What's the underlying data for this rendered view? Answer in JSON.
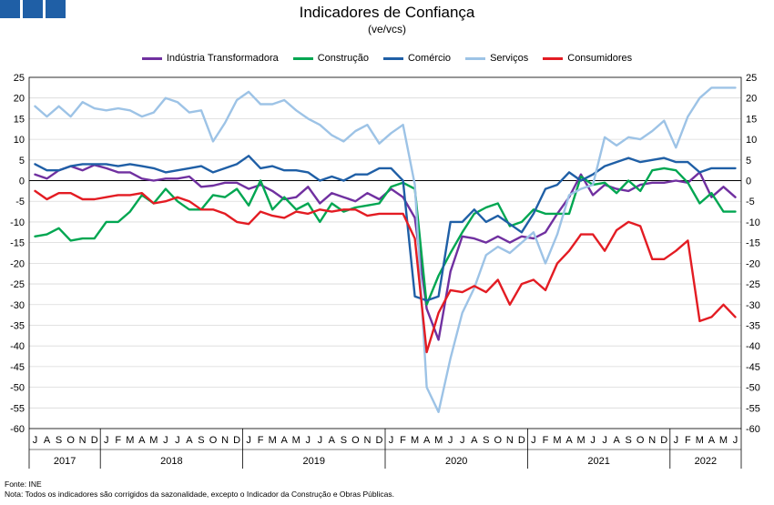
{
  "header": {
    "title": "Indicadores de Confiança",
    "subtitle": "(ve/vcs)"
  },
  "footer": {
    "source": "Fonte: INE",
    "note": "Nota: Todos os indicadores são corrigidos da sazonalidade, excepto o Indicador da Construção e Obras Públicas."
  },
  "chart_data": {
    "type": "line",
    "title": "Indicadores de Confiança",
    "subtitle": "(ve/vcs)",
    "ylim": [
      -60,
      25
    ],
    "yticks": [
      25,
      20,
      15,
      10,
      5,
      0,
      -5,
      -10,
      -15,
      -20,
      -25,
      -30,
      -35,
      -40,
      -45,
      -50,
      -55,
      -60
    ],
    "grid": true,
    "legend_position": "top",
    "months": [
      "J",
      "A",
      "S",
      "O",
      "N",
      "D",
      "J",
      "F",
      "M",
      "A",
      "M",
      "J",
      "J",
      "A",
      "S",
      "O",
      "N",
      "D",
      "J",
      "F",
      "M",
      "A",
      "M",
      "J",
      "J",
      "A",
      "S",
      "O",
      "N",
      "D",
      "J",
      "F",
      "M",
      "A",
      "M",
      "J",
      "J",
      "A",
      "S",
      "O",
      "N",
      "D",
      "J",
      "F",
      "M",
      "A",
      "M",
      "J",
      "J",
      "A",
      "S",
      "O",
      "N",
      "D",
      "J",
      "F",
      "M",
      "A",
      "M",
      "J"
    ],
    "years": [
      {
        "label": "2017",
        "start": 0,
        "count": 6
      },
      {
        "label": "2018",
        "start": 6,
        "count": 12
      },
      {
        "label": "2019",
        "start": 18,
        "count": 12
      },
      {
        "label": "2020",
        "start": 30,
        "count": 12
      },
      {
        "label": "2021",
        "start": 42,
        "count": 12
      },
      {
        "label": "2022",
        "start": 54,
        "count": 6
      }
    ],
    "x": [
      "2017-07",
      "2017-08",
      "2017-09",
      "2017-10",
      "2017-11",
      "2017-12",
      "2018-01",
      "2018-02",
      "2018-03",
      "2018-04",
      "2018-05",
      "2018-06",
      "2018-07",
      "2018-08",
      "2018-09",
      "2018-10",
      "2018-11",
      "2018-12",
      "2019-01",
      "2019-02",
      "2019-03",
      "2019-04",
      "2019-05",
      "2019-06",
      "2019-07",
      "2019-08",
      "2019-09",
      "2019-10",
      "2019-11",
      "2019-12",
      "2020-01",
      "2020-02",
      "2020-03",
      "2020-04",
      "2020-05",
      "2020-06",
      "2020-07",
      "2020-08",
      "2020-09",
      "2020-10",
      "2020-11",
      "2020-12",
      "2021-01",
      "2021-02",
      "2021-03",
      "2021-04",
      "2021-05",
      "2021-06",
      "2021-07",
      "2021-08",
      "2021-09",
      "2021-10",
      "2021-11",
      "2021-12",
      "2022-01",
      "2022-02",
      "2022-03",
      "2022-04",
      "2022-05",
      "2022-06"
    ],
    "series": [
      {
        "name": "Indústria Transformadora",
        "color": "#7030a0",
        "values": [
          1.5,
          0.5,
          2.5,
          3.5,
          2.5,
          3.8,
          3.0,
          2.0,
          2.0,
          0.5,
          0.0,
          0.5,
          0.5,
          1.0,
          -1.5,
          -1.2,
          -0.5,
          -0.5,
          -2.0,
          -1.0,
          -2.5,
          -4.5,
          -4.0,
          -1.5,
          -5.5,
          -3.0,
          -4.0,
          -5.0,
          -3.0,
          -4.5,
          -2.0,
          -4.0,
          -9.0,
          -31.0,
          -38.5,
          -22.0,
          -13.5,
          -14.0,
          -15.0,
          -13.5,
          -15.0,
          -13.5,
          -14.0,
          -12.5,
          -8.0,
          -4.0,
          1.5,
          -3.5,
          -1.0,
          -2.0,
          -2.5,
          -1.0,
          -0.5,
          -0.5,
          0.0,
          -0.5,
          2.0,
          -4.0,
          -1.5,
          -4.0
        ]
      },
      {
        "name": "Construção",
        "color": "#00a651",
        "values": [
          -13.5,
          -13.0,
          -11.5,
          -14.5,
          -14.0,
          -14.0,
          -10.0,
          -10.0,
          -7.5,
          -3.5,
          -5.5,
          -2.0,
          -5.0,
          -7.0,
          -7.0,
          -3.5,
          -4.0,
          -2.0,
          -6.0,
          0.0,
          -7.0,
          -4.0,
          -7.0,
          -5.5,
          -10.0,
          -5.5,
          -7.5,
          -6.5,
          -6.0,
          -5.5,
          -1.5,
          -0.5,
          -2.0,
          -30.0,
          -23.0,
          -17.5,
          -12.5,
          -8.0,
          -6.5,
          -5.5,
          -11.0,
          -10.0,
          -7.0,
          -8.0,
          -8.0,
          -8.0,
          1.0,
          -1.0,
          -0.5,
          -3.0,
          0.0,
          -2.5,
          2.5,
          3.0,
          2.5,
          -0.5,
          -5.5,
          -3.0,
          -7.5,
          -7.5
        ]
      },
      {
        "name": "Comércio",
        "color": "#1f5fa6",
        "values": [
          4.0,
          2.5,
          2.5,
          3.5,
          4.0,
          4.0,
          4.0,
          3.5,
          4.0,
          3.5,
          3.0,
          2.0,
          2.5,
          3.0,
          3.5,
          2.0,
          3.0,
          4.0,
          6.0,
          3.0,
          3.5,
          2.5,
          2.5,
          2.0,
          0.0,
          1.0,
          0.0,
          1.5,
          1.5,
          3.0,
          3.0,
          0.0,
          -28.0,
          -29.0,
          -28.0,
          -10.0,
          -10.0,
          -7.0,
          -10.0,
          -8.5,
          -10.5,
          -12.5,
          -8.0,
          -2.0,
          -1.0,
          2.0,
          0.0,
          1.5,
          3.5,
          4.5,
          5.5,
          4.5,
          5.0,
          5.5,
          4.5,
          4.5,
          2.0,
          3.0,
          3.0,
          3.0
        ]
      },
      {
        "name": "Serviços",
        "color": "#9dc3e6",
        "values": [
          18.0,
          15.5,
          18.0,
          15.5,
          19.0,
          17.5,
          17.0,
          17.5,
          17.0,
          15.5,
          16.5,
          20.0,
          19.0,
          16.5,
          17.0,
          9.5,
          14.0,
          19.5,
          21.5,
          18.5,
          18.5,
          19.5,
          17.0,
          15.0,
          13.5,
          11.0,
          9.5,
          12.0,
          13.5,
          9.0,
          11.5,
          13.5,
          -1.0,
          -50.0,
          -56.0,
          -43.0,
          -32.0,
          -26.0,
          -18.0,
          -16.0,
          -17.5,
          -15.0,
          -12.5,
          -20.0,
          -13.0,
          -3.5,
          -2.0,
          -1.0,
          10.5,
          8.5,
          10.5,
          10.0,
          12.0,
          14.5,
          8.0,
          15.5,
          20.0,
          22.5,
          22.5,
          22.5
        ]
      },
      {
        "name": "Consumidores",
        "color": "#e31c23",
        "values": [
          -2.5,
          -4.5,
          -3.0,
          -3.0,
          -4.5,
          -4.5,
          -4.0,
          -3.5,
          -3.5,
          -3.0,
          -5.5,
          -5.0,
          -4.0,
          -5.0,
          -7.0,
          -7.0,
          -8.0,
          -10.0,
          -10.5,
          -7.5,
          -8.5,
          -9.0,
          -7.5,
          -8.0,
          -7.0,
          -7.5,
          -7.0,
          -7.0,
          -8.5,
          -8.0,
          -8.0,
          -8.0,
          -14.0,
          -41.5,
          -32.0,
          -26.5,
          -27.0,
          -25.5,
          -27.0,
          -24.0,
          -30.0,
          -25.0,
          -24.0,
          -26.5,
          -20.0,
          -17.0,
          -13.0,
          -13.0,
          -17.0,
          -12.0,
          -10.0,
          -11.0,
          -19.0,
          -19.0,
          -17.0,
          -14.5,
          -34.0,
          -33.0,
          -30.0,
          -33.0
        ]
      }
    ]
  }
}
